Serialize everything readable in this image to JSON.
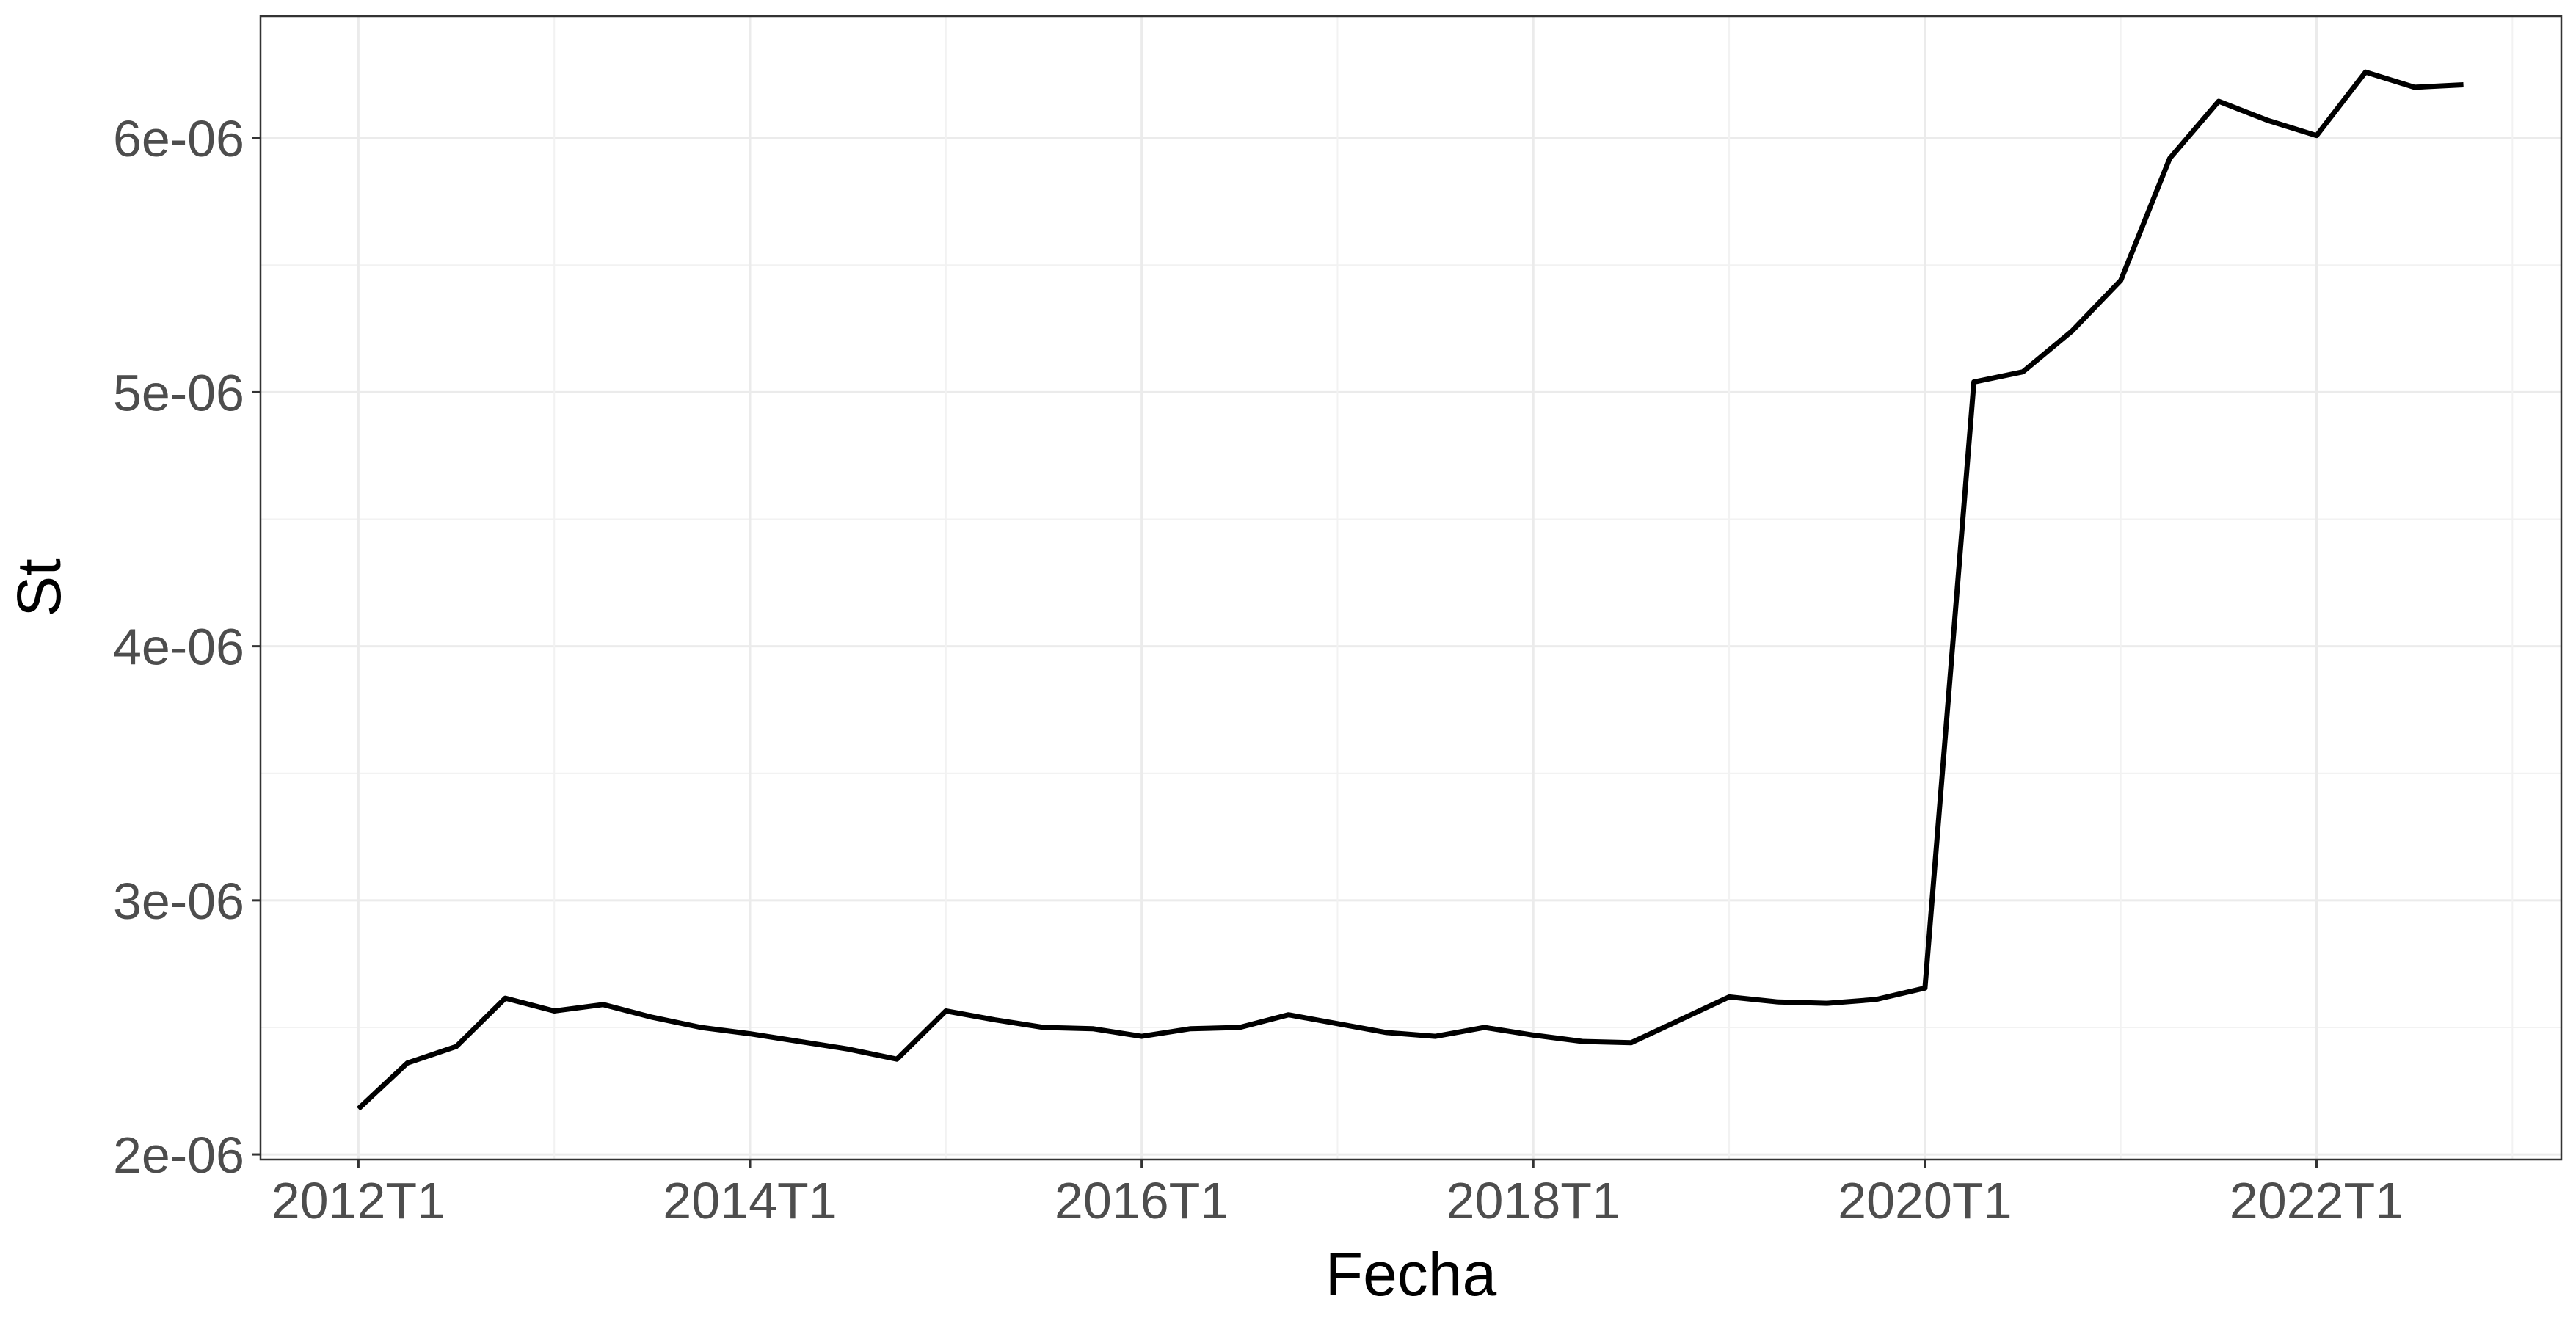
{
  "chart_data": {
    "type": "line",
    "xlabel": "Fecha",
    "ylabel": "St",
    "title": "",
    "grid": true,
    "legend": "none",
    "line_color": "#000000",
    "xlim": [
      "2011T3",
      "2023T2"
    ],
    "ylim": [
      1.98e-06,
      6.48e-06
    ],
    "x_ticks": [
      "2012T1",
      "2014T1",
      "2016T1",
      "2018T1",
      "2020T1",
      "2022T1"
    ],
    "y_ticks": [
      {
        "value": 2e-06,
        "label": "2e-06"
      },
      {
        "value": 3e-06,
        "label": "3e-06"
      },
      {
        "value": 4e-06,
        "label": "4e-06"
      },
      {
        "value": 5e-06,
        "label": "5e-06"
      },
      {
        "value": 6e-06,
        "label": "6e-06"
      }
    ],
    "series": [
      {
        "x": [
          "2012T1",
          "2012T2",
          "2012T3",
          "2012T4",
          "2013T1",
          "2013T2",
          "2013T3",
          "2013T4",
          "2014T1",
          "2014T2",
          "2014T3",
          "2014T4",
          "2015T1",
          "2015T2",
          "2015T3",
          "2015T4",
          "2016T1",
          "2016T2",
          "2016T3",
          "2016T4",
          "2017T1",
          "2017T2",
          "2017T3",
          "2017T4",
          "2018T1",
          "2018T2",
          "2018T3",
          "2018T4",
          "2019T1",
          "2019T2",
          "2019T3",
          "2019T4",
          "2020T1",
          "2020T2",
          "2020T3",
          "2020T4",
          "2021T1",
          "2021T2",
          "2021T3",
          "2021T4",
          "2022T1",
          "2022T2",
          "2022T3",
          "2022T4"
        ],
        "values": [
          2.18e-06,
          2.36e-06,
          2.425e-06,
          2.615e-06,
          2.565e-06,
          2.59e-06,
          2.54e-06,
          2.5e-06,
          2.475e-06,
          2.445e-06,
          2.415e-06,
          2.375e-06,
          2.565e-06,
          2.53e-06,
          2.5e-06,
          2.495e-06,
          2.465e-06,
          2.495e-06,
          2.5e-06,
          2.55e-06,
          2.515e-06,
          2.48e-06,
          2.465e-06,
          2.5e-06,
          2.47e-06,
          2.445e-06,
          2.44e-06,
          2.53e-06,
          2.62e-06,
          2.6e-06,
          2.595e-06,
          2.61e-06,
          2.655e-06,
          5.04e-06,
          5.08e-06,
          5.24e-06,
          5.44e-06,
          5.92e-06,
          6.145e-06,
          6.07e-06,
          6.01e-06,
          6.26e-06,
          6.2e-06,
          6.21e-06
        ]
      }
    ]
  }
}
